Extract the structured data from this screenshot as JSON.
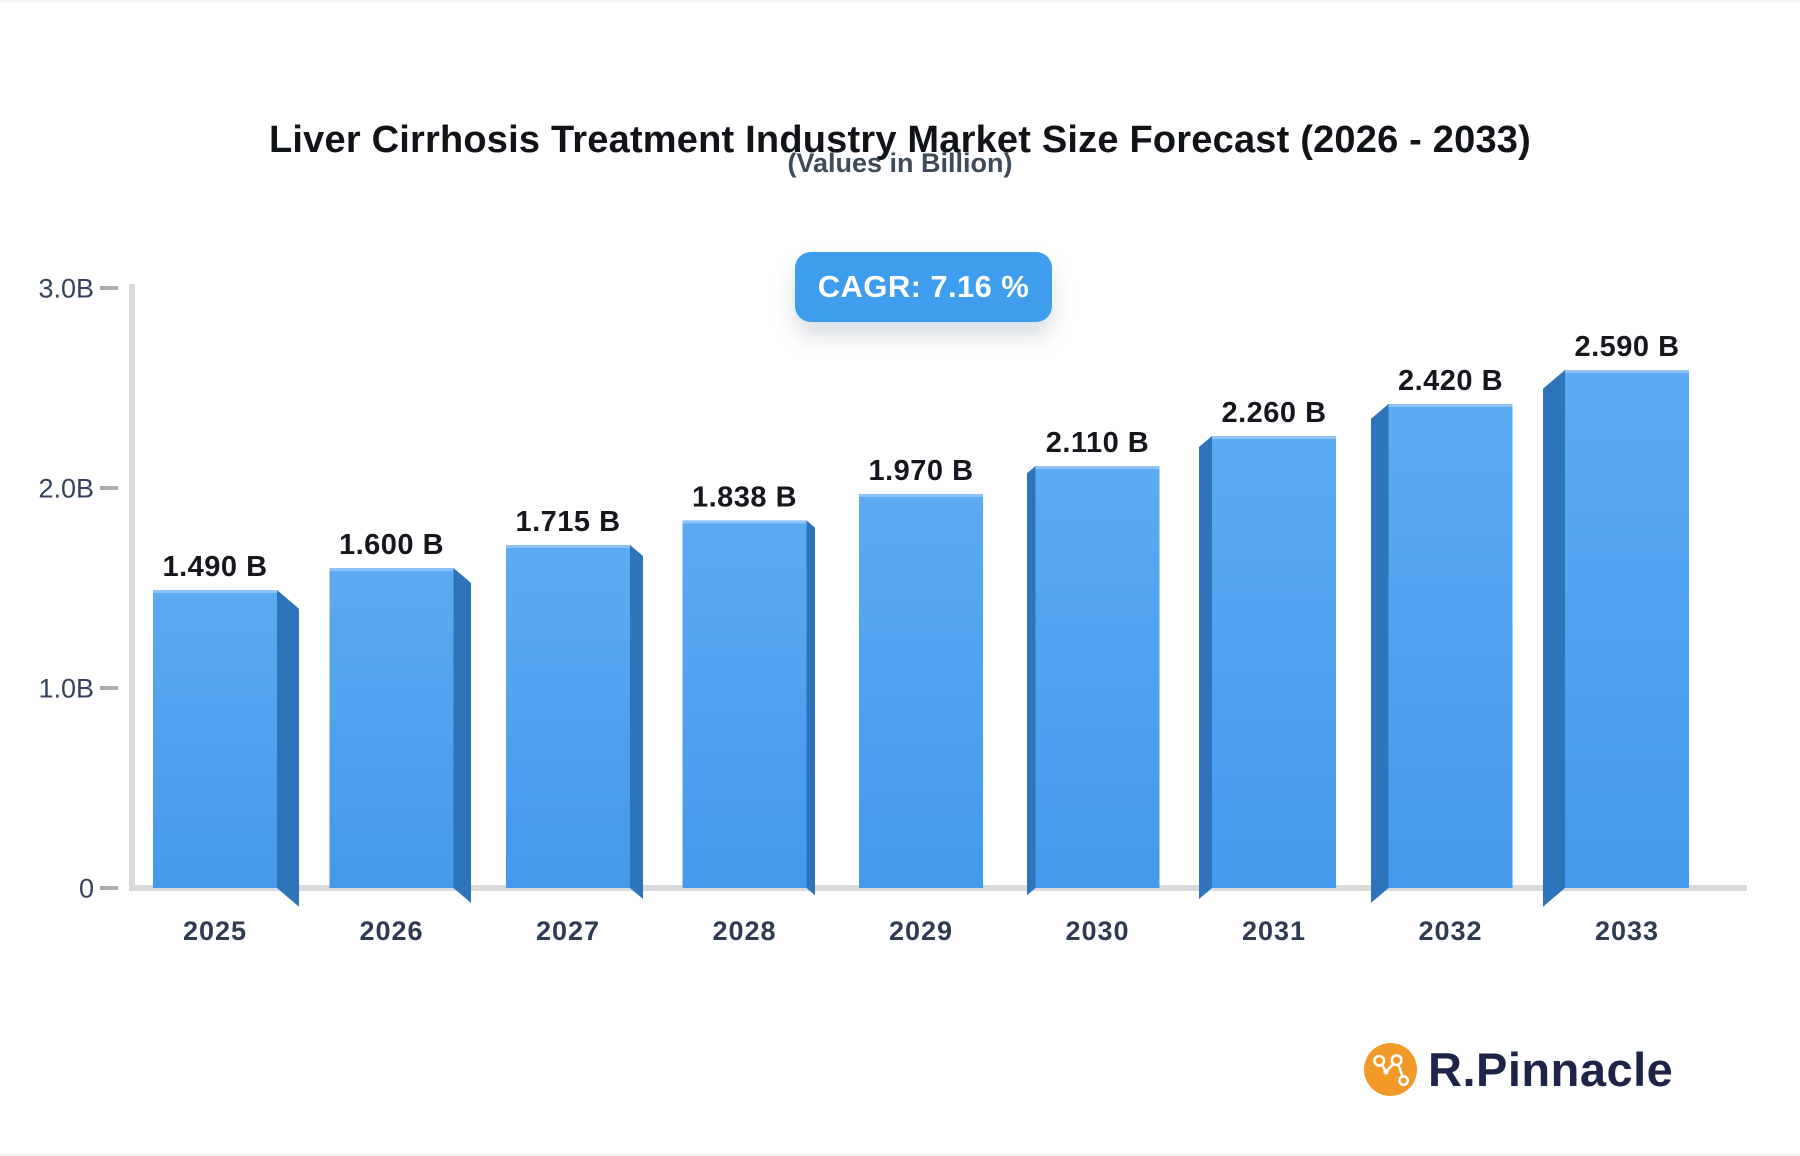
{
  "header": {
    "title": "Liver Cirrhosis Treatment Industry Market Size Forecast (2026 - 2033)",
    "subtitle": "(Values in Billion)",
    "cagr_badge": "CAGR: 7.16 %"
  },
  "brand": {
    "name": "R.Pinnacle",
    "icon": "network-nodes-icon"
  },
  "colors": {
    "bar_front_top": "#5CAAF2",
    "bar_front_bottom": "#4499EC",
    "bar_side": "#2E74BA",
    "bar_top_highlight": "rgba(255,255,255,0.30)",
    "badge_bg": "#3E9DED",
    "axis_line": "#D8DADD",
    "tick_dash": "#A9AEB6",
    "axis_label": "#32435B",
    "year_label": "#2E3B52",
    "value_label": "#14171D",
    "title_text": "#101317",
    "subtitle_text": "#3F4A5A",
    "brand_orange": "#F29A27",
    "brand_navy": "#1E2448"
  },
  "chart_data": {
    "type": "bar",
    "style": "3d-perspective-bars",
    "title": "Liver Cirrhosis Treatment Industry Market Size Forecast (2026 - 2033)",
    "subtitle": "(Values in Billion)",
    "cagr_percent": 7.16,
    "unit": "Billion",
    "categories": [
      "2025",
      "2026",
      "2027",
      "2028",
      "2029",
      "2030",
      "2031",
      "2032",
      "2033"
    ],
    "values": [
      1.49,
      1.6,
      1.715,
      1.838,
      1.97,
      2.11,
      2.26,
      2.42,
      2.59
    ],
    "value_labels": [
      "1.490 B",
      "1.600 B",
      "1.715 B",
      "1.838 B",
      "1.970 B",
      "2.110 B",
      "2.260 B",
      "2.420 B",
      "2.590 B"
    ],
    "xlabel": "",
    "ylabel": "",
    "ylim": [
      0,
      3.0
    ],
    "y_ticks": [
      {
        "label": "3.0B",
        "value": 3.0
      },
      {
        "label": "2.0B",
        "value": 2.0
      },
      {
        "label": "1.0B",
        "value": 1.0
      },
      {
        "label": "0",
        "value": 0
      }
    ],
    "grid": false,
    "legend": false
  }
}
